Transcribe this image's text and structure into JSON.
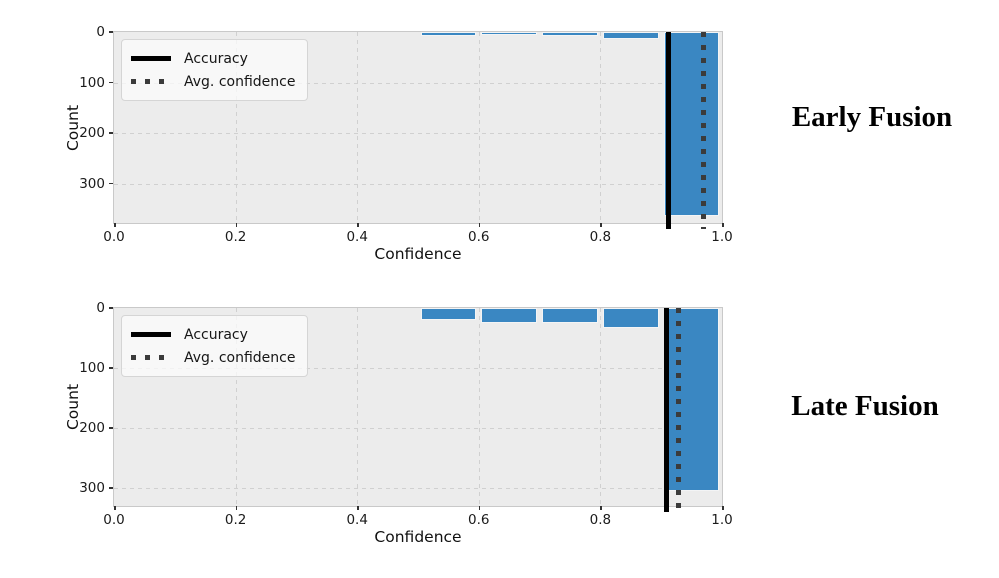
{
  "figure": {
    "background_color": "#ffffff",
    "plot_background_color": "#ececec",
    "grid_color": "#d0d0d0",
    "bar_color": "#3a87c2",
    "accuracy_line_color": "#000000",
    "avg_confidence_line_color": "#3b3b3b",
    "xlabel": "Confidence",
    "ylabel": "Count",
    "legend": {
      "accuracy_label": "Accuracy",
      "avg_confidence_label": "Avg. confidence"
    }
  },
  "chart_data": [
    {
      "type": "bar",
      "title": "Early Fusion",
      "xlabel": "Confidence",
      "ylabel": "Count",
      "x_tick_labels": [
        "0.0",
        "0.2",
        "0.4",
        "0.6",
        "0.8",
        "1.0"
      ],
      "x_ticks": [
        0.0,
        0.2,
        0.4,
        0.6,
        0.8,
        1.0
      ],
      "y_tick_labels": [
        "0",
        "100",
        "200",
        "300"
      ],
      "y_ticks": [
        0,
        100,
        200,
        300
      ],
      "xlim": [
        0.0,
        1.0
      ],
      "ylim": [
        0,
        378
      ],
      "y_inverted": true,
      "grid": true,
      "legend_position": "upper left",
      "legend_entries": [
        "Accuracy",
        "Avg. confidence"
      ],
      "bins": [
        {
          "x0": 0.5,
          "x1": 0.6,
          "count": 8
        },
        {
          "x0": 0.6,
          "x1": 0.7,
          "count": 5
        },
        {
          "x0": 0.7,
          "x1": 0.8,
          "count": 8
        },
        {
          "x0": 0.8,
          "x1": 0.9,
          "count": 14
        },
        {
          "x0": 0.9,
          "x1": 1.0,
          "count": 365
        }
      ],
      "accuracy": 0.912,
      "avg_confidence": 0.97
    },
    {
      "type": "bar",
      "title": "Late Fusion",
      "xlabel": "Confidence",
      "ylabel": "Count",
      "x_tick_labels": [
        "0.0",
        "0.2",
        "0.4",
        "0.6",
        "0.8",
        "1.0"
      ],
      "x_ticks": [
        0.0,
        0.2,
        0.4,
        0.6,
        0.8,
        1.0
      ],
      "y_tick_labels": [
        "0",
        "100",
        "200",
        "300"
      ],
      "y_ticks": [
        0,
        100,
        200,
        300
      ],
      "xlim": [
        0.0,
        1.0
      ],
      "ylim": [
        0,
        330
      ],
      "y_inverted": true,
      "grid": true,
      "legend_position": "upper left",
      "legend_entries": [
        "Accuracy",
        "Avg. confidence"
      ],
      "bins": [
        {
          "x0": 0.5,
          "x1": 0.6,
          "count": 20
        },
        {
          "x0": 0.6,
          "x1": 0.7,
          "count": 25
        },
        {
          "x0": 0.7,
          "x1": 0.8,
          "count": 25
        },
        {
          "x0": 0.8,
          "x1": 0.9,
          "count": 33
        },
        {
          "x0": 0.9,
          "x1": 1.0,
          "count": 305
        }
      ],
      "accuracy": 0.908,
      "avg_confidence": 0.928
    }
  ]
}
